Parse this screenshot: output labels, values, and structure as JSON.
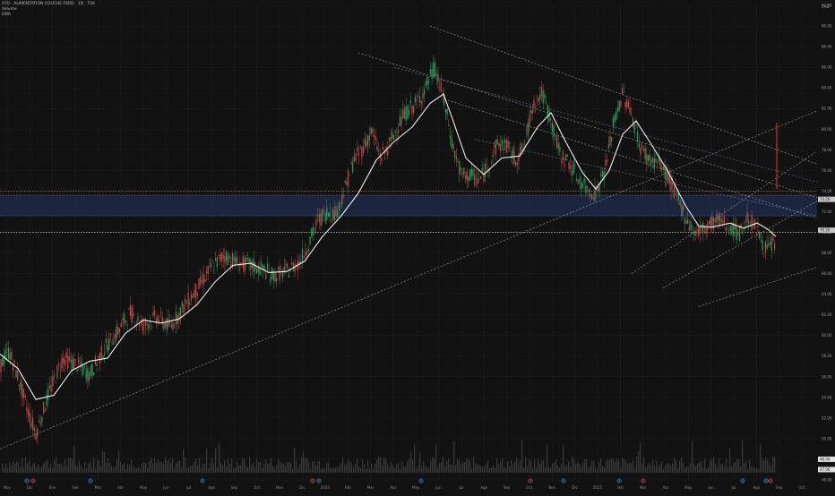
{
  "header": {
    "symbol_line": "ATD · ALIMENTATION COUCHE-TARD · 1D · TSX",
    "volume_label": "Volume",
    "ema_label": "EMA"
  },
  "currency": "CAD",
  "colors": {
    "background": "#121212",
    "grid": "#1f1f1f",
    "up_candle": "#2e9e5e",
    "down_candle": "#d04848",
    "ma_line": "#ffffff",
    "channel_white": "#bdbdbd",
    "channel_blue": "#7189c9",
    "zone_fill": "#1d2a46",
    "spike": "#e53935"
  },
  "chart_data": {
    "type": "candlestick",
    "ylim": [
      46,
      92
    ],
    "y_ticks": [
      92,
      90,
      88,
      86,
      84,
      82,
      80,
      78,
      76,
      74,
      72,
      70,
      68,
      66,
      64,
      62,
      60,
      58,
      56,
      54,
      52,
      50,
      48,
      46
    ],
    "x_ticks": [
      "Nov",
      "Dic",
      "Ene",
      "Feb",
      "Mar",
      "Abr",
      "May",
      "Jun",
      "Jul",
      "Ago",
      "Sep",
      "Oct",
      "Nov",
      "Dic",
      "2024",
      "Feb",
      "Mar",
      "Abr",
      "May",
      "Jun",
      "Jul",
      "Ago",
      "Sep",
      "Oct",
      "Nov",
      "Dic",
      "2025",
      "Feb",
      "Mar",
      "Abr",
      "May",
      "Jun",
      "Jul",
      "Ago",
      "Sep",
      "Oct"
    ],
    "price_path": [
      [
        0,
        57.0
      ],
      [
        10,
        58.5
      ],
      [
        20,
        56.0
      ],
      [
        30,
        53.0
      ],
      [
        40,
        50.5
      ],
      [
        55,
        54.5
      ],
      [
        70,
        57.8
      ],
      [
        85,
        57.2
      ],
      [
        100,
        56.2
      ],
      [
        115,
        58.5
      ],
      [
        130,
        60.2
      ],
      [
        145,
        62.2
      ],
      [
        160,
        61.0
      ],
      [
        175,
        61.8
      ],
      [
        190,
        60.8
      ],
      [
        205,
        62.8
      ],
      [
        220,
        64.5
      ],
      [
        235,
        66.5
      ],
      [
        250,
        67.8
      ],
      [
        265,
        67.0
      ],
      [
        280,
        66.8
      ],
      [
        295,
        66.3
      ],
      [
        305,
        65.8
      ],
      [
        320,
        66.2
      ],
      [
        335,
        67.2
      ],
      [
        345,
        69.0
      ],
      [
        355,
        71.2
      ],
      [
        365,
        72.0
      ],
      [
        375,
        71.8
      ],
      [
        385,
        74.2
      ],
      [
        395,
        77.0
      ],
      [
        405,
        78.2
      ],
      [
        415,
        79.8
      ],
      [
        425,
        77.2
      ],
      [
        435,
        78.5
      ],
      [
        445,
        80.5
      ],
      [
        455,
        81.8
      ],
      [
        465,
        82.5
      ],
      [
        475,
        84.0
      ],
      [
        485,
        86.0
      ],
      [
        495,
        83.0
      ],
      [
        505,
        78.5
      ],
      [
        515,
        75.5
      ],
      [
        525,
        75.5
      ],
      [
        535,
        75.0
      ],
      [
        545,
        76.5
      ],
      [
        555,
        78.5
      ],
      [
        565,
        78.5
      ],
      [
        575,
        77.0
      ],
      [
        585,
        78.2
      ],
      [
        595,
        82.5
      ],
      [
        605,
        83.5
      ],
      [
        615,
        80.8
      ],
      [
        625,
        77.5
      ],
      [
        635,
        76.8
      ],
      [
        645,
        75.2
      ],
      [
        655,
        74.2
      ],
      [
        665,
        73.8
      ],
      [
        675,
        76.0
      ],
      [
        685,
        80.5
      ],
      [
        695,
        83.5
      ],
      [
        705,
        81.5
      ],
      [
        715,
        78.2
      ],
      [
        725,
        77.0
      ],
      [
        735,
        76.8
      ],
      [
        745,
        75.5
      ],
      [
        755,
        73.5
      ],
      [
        765,
        71.5
      ],
      [
        775,
        70.0
      ],
      [
        785,
        70.3
      ],
      [
        795,
        71.0
      ],
      [
        805,
        71.2
      ],
      [
        815,
        70.5
      ],
      [
        825,
        69.8
      ],
      [
        835,
        71.5
      ],
      [
        845,
        70.2
      ],
      [
        855,
        68.2
      ],
      [
        865,
        69.0
      ]
    ],
    "ma_path": [
      [
        0,
        58.2
      ],
      [
        20,
        56.8
      ],
      [
        40,
        53.8
      ],
      [
        60,
        54.2
      ],
      [
        80,
        56.6
      ],
      [
        100,
        57.5
      ],
      [
        120,
        57.8
      ],
      [
        140,
        60.2
      ],
      [
        160,
        61.5
      ],
      [
        180,
        61.2
      ],
      [
        200,
        61.6
      ],
      [
        220,
        63.0
      ],
      [
        240,
        65.2
      ],
      [
        260,
        66.8
      ],
      [
        280,
        67.0
      ],
      [
        300,
        66.1
      ],
      [
        320,
        66.2
      ],
      [
        340,
        67.2
      ],
      [
        360,
        69.6
      ],
      [
        380,
        71.5
      ],
      [
        400,
        73.8
      ],
      [
        420,
        77.0
      ],
      [
        440,
        78.8
      ],
      [
        460,
        80.2
      ],
      [
        480,
        82.5
      ],
      [
        495,
        83.4
      ],
      [
        505,
        81.0
      ],
      [
        520,
        77.2
      ],
      [
        540,
        75.6
      ],
      [
        560,
        77.2
      ],
      [
        580,
        77.4
      ],
      [
        600,
        80.2
      ],
      [
        615,
        81.6
      ],
      [
        630,
        79.0
      ],
      [
        650,
        75.8
      ],
      [
        665,
        74.2
      ],
      [
        680,
        76.0
      ],
      [
        695,
        79.5
      ],
      [
        710,
        80.8
      ],
      [
        725,
        78.8
      ],
      [
        745,
        76.0
      ],
      [
        765,
        72.6
      ],
      [
        780,
        70.6
      ],
      [
        795,
        70.5
      ],
      [
        815,
        70.9
      ],
      [
        830,
        70.4
      ],
      [
        845,
        70.9
      ],
      [
        857,
        70.3
      ],
      [
        866,
        69.6
      ]
    ],
    "resistance_zone": [
      71.6,
      73.6
    ],
    "upper_zone_line": 74.0,
    "support_zone_line": 70.0,
    "spike": {
      "x": 867,
      "high": 80.6,
      "low": 74.2
    },
    "trend_lines": [
      {
        "style": "white",
        "from": [
          0,
          49.0
        ],
        "to": [
          932,
          82.5
        ]
      },
      {
        "style": "white",
        "from": [
          480,
          90.0
        ],
        "to": [
          932,
          76.0
        ]
      },
      {
        "style": "white",
        "from": [
          400,
          87.4
        ],
        "to": [
          932,
          72.8
        ]
      },
      {
        "style": "white",
        "from": [
          500,
          82.8
        ],
        "to": [
          932,
          70.8
        ]
      },
      {
        "style": "white",
        "from": [
          705,
          66.0
        ],
        "to": [
          932,
          79.0
        ]
      },
      {
        "style": "white",
        "from": [
          740,
          64.6
        ],
        "to": [
          932,
          74.0
        ]
      },
      {
        "style": "white",
        "from": [
          780,
          62.8
        ],
        "to": [
          932,
          67.2
        ]
      },
      {
        "style": "blue",
        "from": [
          440,
          86.0
        ],
        "to": [
          932,
          74.4
        ]
      },
      {
        "style": "blue",
        "from": [
          530,
          79.0
        ],
        "to": [
          932,
          71.2
        ]
      }
    ],
    "right_axis_markers": [
      73.2,
      70.2,
      48.0,
      47.0
    ]
  }
}
